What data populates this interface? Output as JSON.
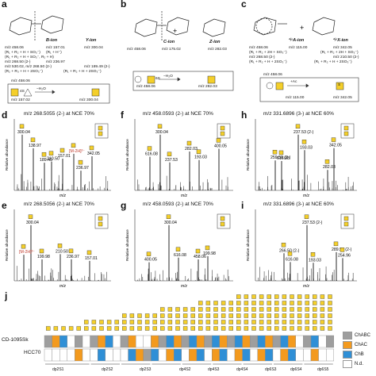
{
  "panels": {
    "a": {
      "label": "a",
      "ions": [
        "B-ion",
        "Y-ion"
      ],
      "lines": [
        "m/z 458.06",
        "(R₁ + R₂ + H + SO₃⁻)",
        "m/z 157.01",
        "(R₁ + H⁻)",
        "m/z 300.04",
        "(R₁ + R₂ + H + SO₃⁻, R₂ + H)",
        "m/z 268.50 (2-)",
        "m/z 236.97",
        "m/z 530.02, m/z 268.50 (2-)",
        "m/z 189.49 (2-)",
        "(R₂ + R₃ + H + 2SO₃⁻)",
        "(R₁ + R₂ + H + 2SO₃⁻)"
      ],
      "box": [
        "m/z 458.06",
        "4S",
        "−H₂O",
        "m/z 157.02",
        "m/z 300.04"
      ]
    },
    "b": {
      "label": "b",
      "ions": [
        "C-ion",
        "Z-ion"
      ],
      "lines": [
        "m/z 458.06",
        "m/z 175.02",
        "m/z 282.03"
      ],
      "box": [
        "6S",
        "m/z 458.06",
        "−H₂O",
        "m/z 282.03"
      ]
    },
    "c": {
      "label": "c",
      "ions": [
        "²ʲ⁵A-ion",
        "²ʲ⁵X-ion"
      ],
      "lines": [
        "m/z 458.06",
        "(R₁ + R₂ + 2H + SO₃⁻)",
        "m/z 115.00",
        "m/z 342.05",
        "(R₁ + R₂ + 2H + SO₃⁻)",
        "m/z 268.50 (2-)",
        "m/z 210.50 (2-)",
        "(R₁ + R₂ + H + 2SO₃⁻)",
        "(R₁ + R₂ + H + 2SO₃⁻)"
      ],
      "box": [
        "m/z 458.06",
        "m/z 115.00",
        "m/z 342.05",
        "+Ac",
        "S"
      ]
    },
    "d": {
      "label": "d",
      "title": "m/z 268.5055 (2-) at NCE 70%",
      "peaks": [
        "300.04",
        "210.50",
        "236.97",
        "138.97",
        "157.01",
        "342.05",
        "189.49",
        "[M-2H]²⁻"
      ]
    },
    "e": {
      "label": "e",
      "title": "m/z 268.5056 (2-) at NCE 70%",
      "peaks": [
        "300.04",
        "210.50",
        "157.01",
        "199.98",
        "236.97",
        "[M-2H]²⁻"
      ]
    },
    "f": {
      "label": "f",
      "title": "m/z 458.0593 (2-) at NCE 70%",
      "peaks": [
        "300.04",
        "282.03",
        "400.05",
        "237.53",
        "193.03",
        "616.08"
      ]
    },
    "g": {
      "label": "g",
      "title": "m/z 458.0593 (2-) at NCE 70%",
      "peaks": [
        "300.04",
        "458.06",
        "400.05",
        "616.08",
        "199.98"
      ]
    },
    "h": {
      "label": "h",
      "title": "m/z 331.6896 (3-) at NCE 60%",
      "peaks": [
        "237.53 (2-)",
        "282.03",
        "259.50 (2-)",
        "193.03",
        "342.05",
        "616.08"
      ]
    },
    "i": {
      "label": "i",
      "title": "m/z 331.6896 (3-) at NCE 60%",
      "peaks": [
        "237.53 (2-)",
        "289.51 (2-)",
        "266.50 (2-)",
        "193.03",
        "254.96",
        "616.08"
      ]
    },
    "j": {
      "label": "j"
    }
  },
  "axes": {
    "ylabel": "Relative abundance",
    "xlabel": "m/z"
  },
  "heatmap": {
    "rows": [
      "CD-1095Sk",
      "HCC70"
    ],
    "groups": [
      "dp2S1",
      "dp2S2",
      "dp2S3",
      "dp4S2",
      "dp4S3",
      "dp4S4",
      "dp6S3",
      "dp6S4",
      "dp6S5"
    ],
    "legend": [
      {
        "label": "ChABC",
        "color": "#9e9e9e"
      },
      {
        "label": "ChAC",
        "color": "#f39a1e"
      },
      {
        "label": "ChB",
        "color": "#2f8fd6"
      },
      {
        "label": "N.d.",
        "color": "#ffffff"
      }
    ],
    "columns": 38,
    "row1": [
      0,
      1,
      2,
      3,
      0,
      3,
      0,
      1,
      2,
      3,
      0,
      1,
      3,
      3,
      1,
      0,
      2,
      1,
      0,
      2,
      1,
      0,
      2,
      1,
      0,
      2,
      1,
      0,
      2,
      1,
      0,
      2,
      1,
      3,
      0,
      2,
      3,
      0
    ],
    "row2": [
      3,
      3,
      3,
      3,
      1,
      3,
      3,
      2,
      3,
      3,
      3,
      2,
      1,
      0,
      2,
      3,
      1,
      2,
      3,
      1,
      2,
      3,
      1,
      2,
      3,
      1,
      2,
      3,
      1,
      2,
      3,
      1,
      2,
      3,
      3,
      1,
      3,
      3
    ]
  }
}
